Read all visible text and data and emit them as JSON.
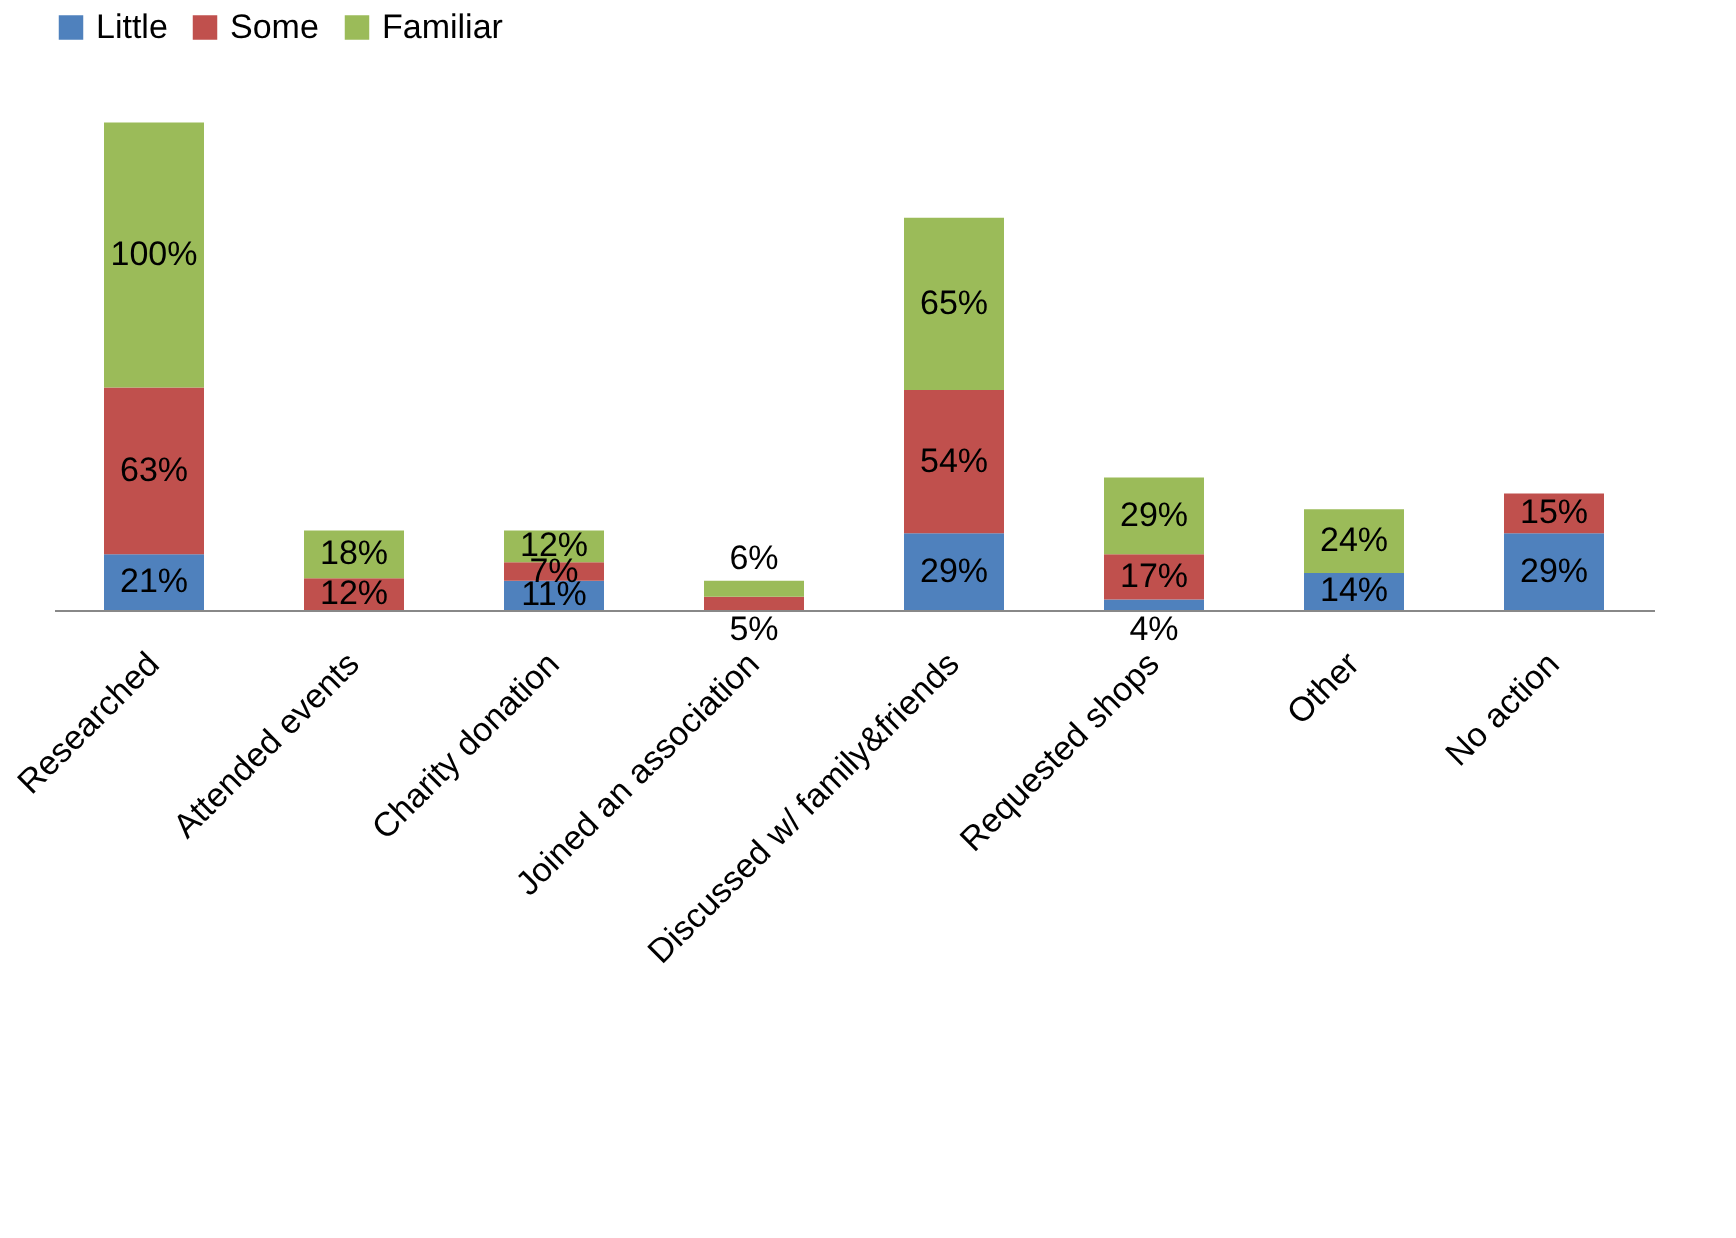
{
  "chart_data": {
    "type": "bar",
    "stacked": true,
    "categories": [
      "Researched",
      "Attended events",
      "Charity donation",
      "Joined an association",
      "Discussed w/ family&friends",
      "Requested shops",
      "Other",
      "No action"
    ],
    "series": [
      {
        "name": "Little",
        "color": "#4f81bd",
        "values": [
          21,
          0,
          11,
          0,
          29,
          4,
          14,
          29
        ],
        "value_labels": [
          "21%",
          null,
          "11%",
          null,
          "29%",
          "4%",
          "14%",
          "29%"
        ]
      },
      {
        "name": "Some",
        "color": "#c0504d",
        "values": [
          63,
          12,
          7,
          5,
          54,
          17,
          0,
          15
        ],
        "value_labels": [
          "63%",
          "12%",
          "7%",
          "5%",
          "54%",
          "17%",
          null,
          "15%"
        ]
      },
      {
        "name": "Familiar",
        "color": "#9bbb59",
        "values": [
          100,
          18,
          12,
          6,
          65,
          29,
          24,
          0
        ],
        "value_labels": [
          "100%",
          "18%",
          "12%",
          "6%",
          "65%",
          "29%",
          "24%",
          null
        ]
      }
    ],
    "tick_labels": "x",
    "grid": false,
    "legend": "top"
  }
}
